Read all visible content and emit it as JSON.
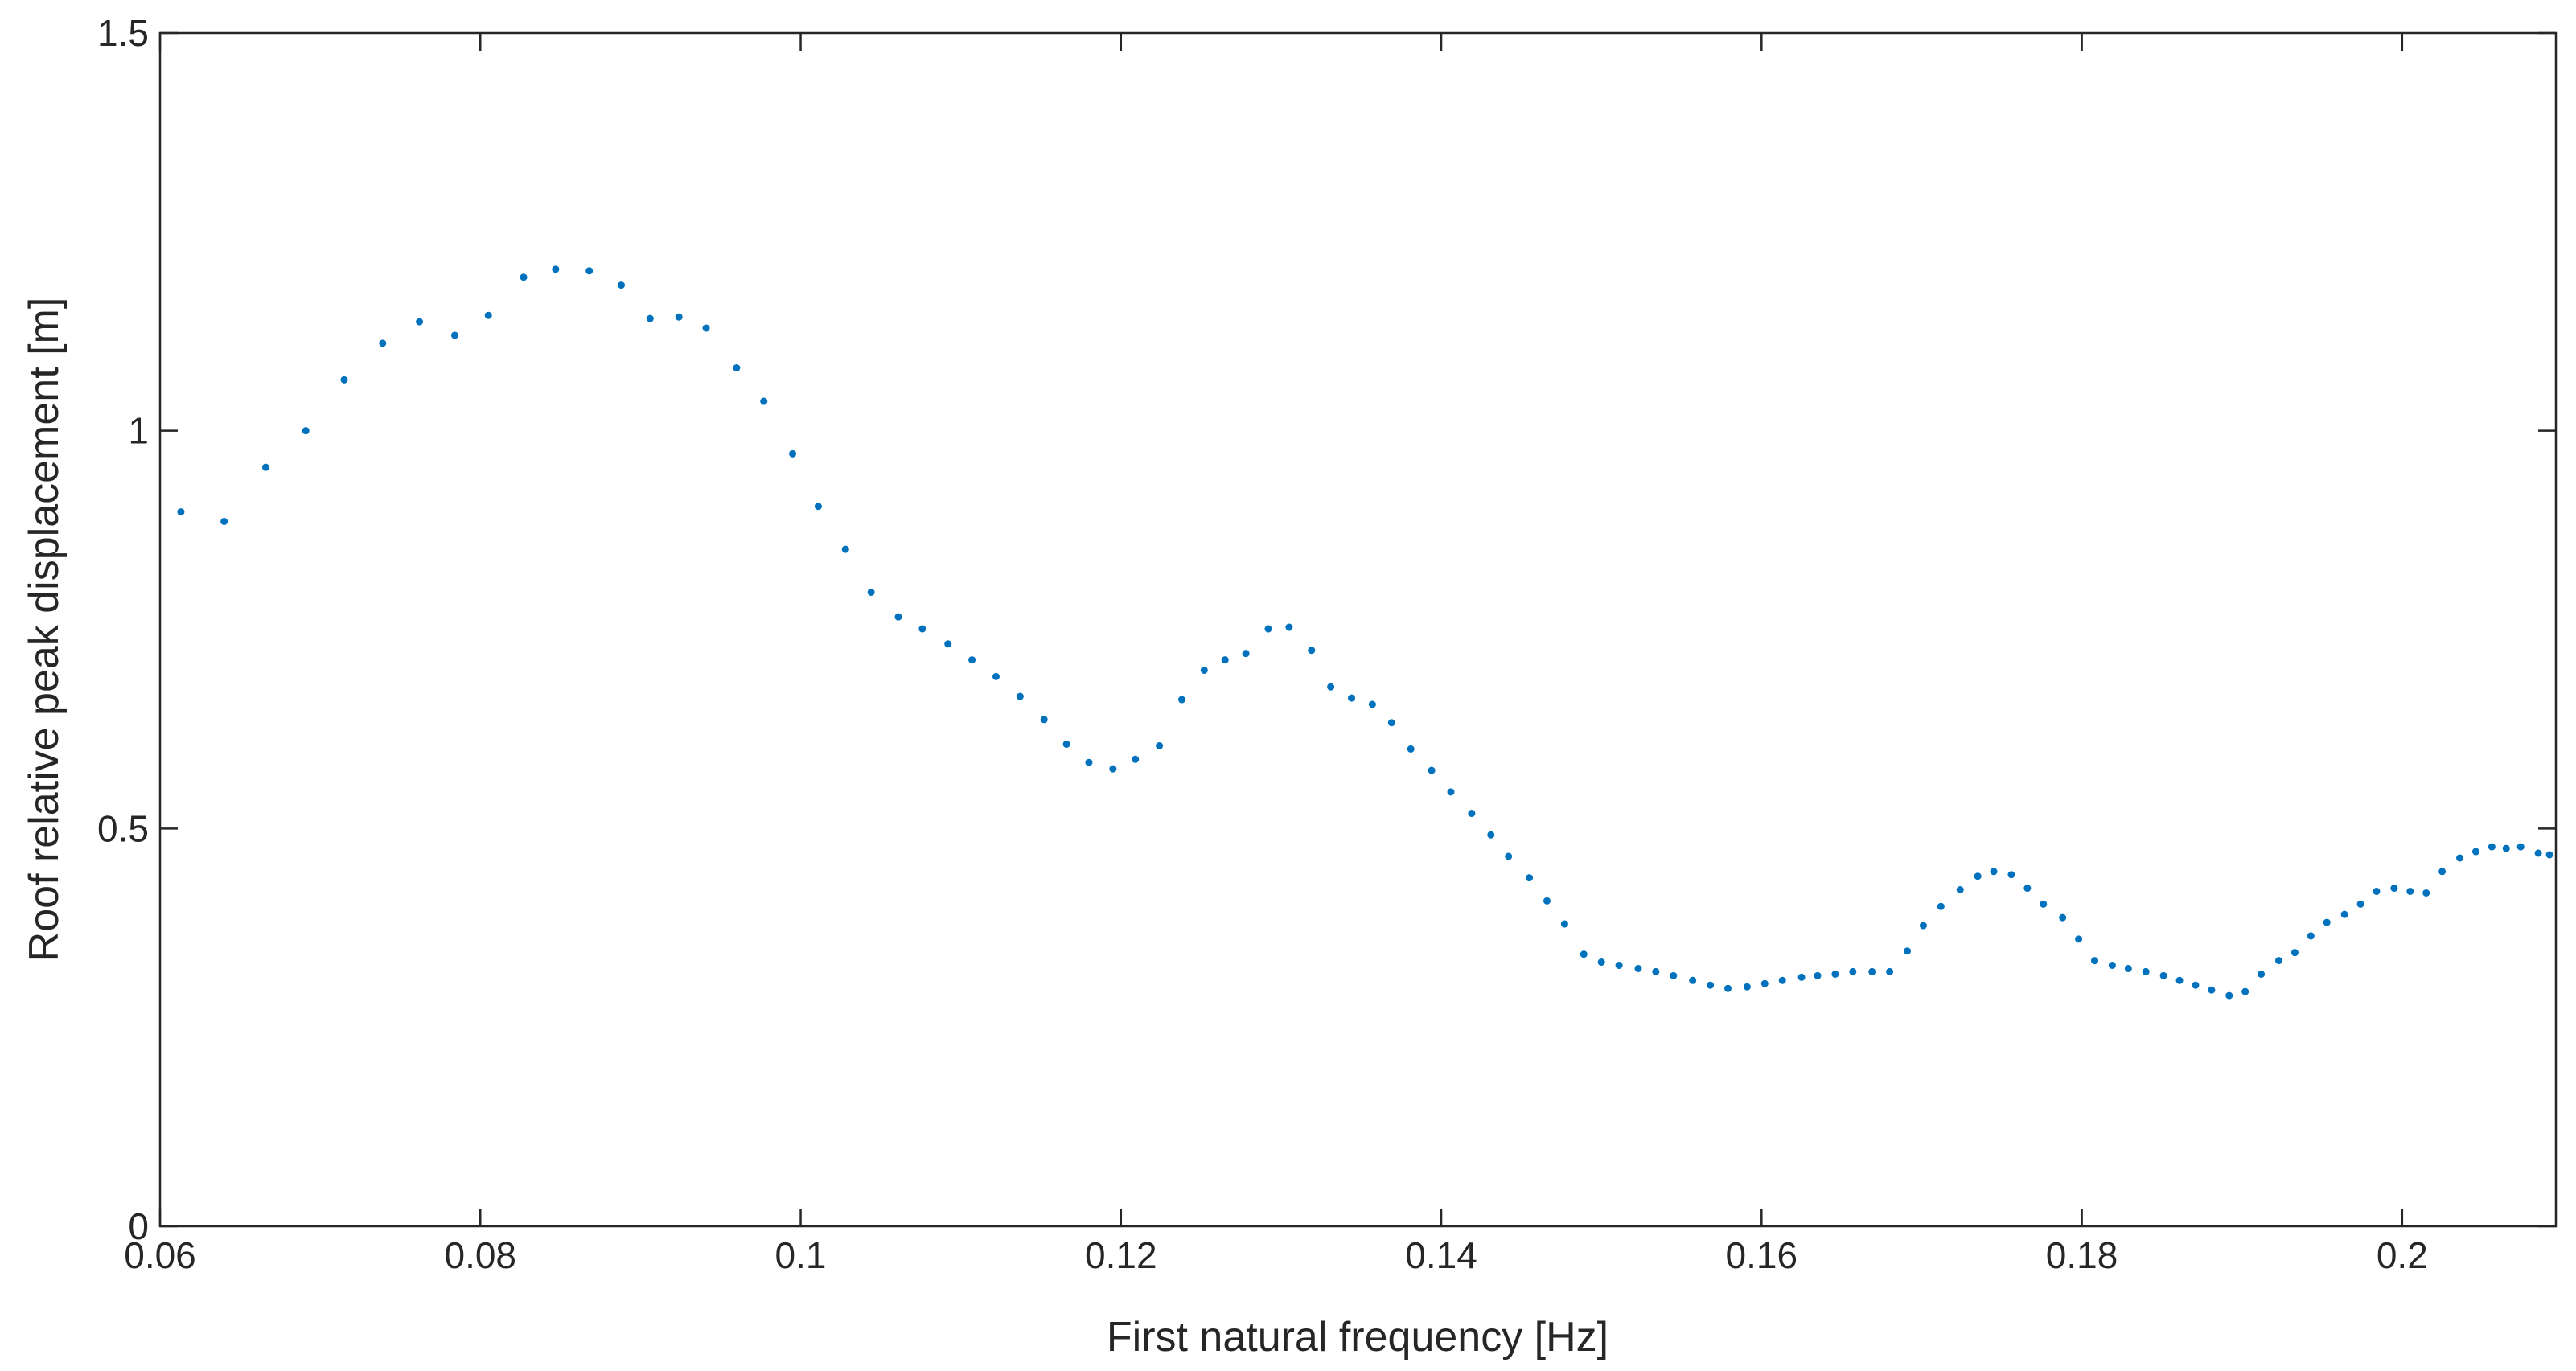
{
  "chart_data": {
    "type": "scatter",
    "xlabel": "First natural frequency [Hz]",
    "ylabel": "Roof relative peak displacement [m]",
    "xlim": [
      0.06,
      0.2096
    ],
    "ylim": [
      0,
      1.5
    ],
    "xticks": [
      0.06,
      0.08,
      0.1,
      0.12,
      0.14,
      0.16,
      0.18,
      0.2
    ],
    "yticks": [
      0,
      0.5,
      1,
      1.5
    ],
    "grid": false,
    "series": [
      {
        "color": "#0072bd",
        "x": [
          0.0613,
          0.064,
          0.0666,
          0.0691,
          0.0715,
          0.0739,
          0.0762,
          0.0784,
          0.0805,
          0.0827,
          0.0847,
          0.0868,
          0.0888,
          0.0906,
          0.0924,
          0.0941,
          0.096,
          0.0977,
          0.0995,
          0.1011,
          0.1028,
          0.1044,
          0.1061,
          0.1076,
          0.1092,
          0.1107,
          0.1122,
          0.1137,
          0.1152,
          0.1166,
          0.118,
          0.1195,
          0.1209,
          0.1224,
          0.1238,
          0.1252,
          0.1265,
          0.1278,
          0.1292,
          0.1305,
          0.1319,
          0.1331,
          0.1344,
          0.1357,
          0.1369,
          0.1381,
          0.1394,
          0.1406,
          0.1419,
          0.1431,
          0.1442,
          0.1455,
          0.1466,
          0.1477,
          0.1489,
          0.15,
          0.1511,
          0.1523,
          0.1534,
          0.1545,
          0.1557,
          0.1568,
          0.1579,
          0.1591,
          0.1602,
          0.1613,
          0.1625,
          0.1635,
          0.1646,
          0.1657,
          0.1669,
          0.168,
          0.1691,
          0.1701,
          0.1712,
          0.1724,
          0.1735,
          0.1745,
          0.1756,
          0.1766,
          0.1776,
          0.1788,
          0.1798,
          0.1808,
          0.1819,
          0.1829,
          0.184,
          0.1851,
          0.1861,
          0.1871,
          0.1881,
          0.1892,
          0.1902,
          0.1912,
          0.1923,
          0.1933,
          0.1943,
          0.1953,
          0.1964,
          0.1974,
          0.1984,
          0.1995,
          0.2005,
          0.2015,
          0.2025,
          0.2036,
          0.2046,
          0.2056,
          0.2065,
          0.2074,
          0.2085,
          0.2092
        ],
        "values": [
          0.898,
          0.886,
          0.954,
          1.0,
          1.064,
          1.11,
          1.137,
          1.12,
          1.145,
          1.193,
          1.203,
          1.201,
          1.183,
          1.141,
          1.143,
          1.129,
          1.079,
          1.037,
          0.971,
          0.905,
          0.851,
          0.797,
          0.766,
          0.751,
          0.732,
          0.712,
          0.691,
          0.666,
          0.637,
          0.606,
          0.583,
          0.575,
          0.587,
          0.604,
          0.662,
          0.699,
          0.712,
          0.72,
          0.751,
          0.753,
          0.724,
          0.678,
          0.664,
          0.656,
          0.633,
          0.6,
          0.573,
          0.546,
          0.519,
          0.492,
          0.465,
          0.438,
          0.409,
          0.38,
          0.342,
          0.332,
          0.328,
          0.324,
          0.32,
          0.315,
          0.309,
          0.303,
          0.299,
          0.301,
          0.305,
          0.309,
          0.313,
          0.315,
          0.317,
          0.32,
          0.32,
          0.32,
          0.346,
          0.378,
          0.402,
          0.423,
          0.44,
          0.446,
          0.442,
          0.425,
          0.405,
          0.388,
          0.361,
          0.334,
          0.328,
          0.324,
          0.32,
          0.315,
          0.309,
          0.303,
          0.297,
          0.29,
          0.295,
          0.317,
          0.334,
          0.344,
          0.365,
          0.382,
          0.392,
          0.405,
          0.421,
          0.425,
          0.421,
          0.419,
          0.446,
          0.463,
          0.471,
          0.477,
          0.475,
          0.477,
          0.469,
          0.467
        ]
      }
    ]
  }
}
